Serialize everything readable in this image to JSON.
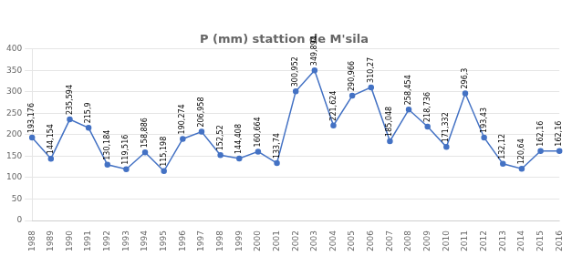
{
  "chart_data": {
    "type": "line",
    "title": "P (mm) stattion de M'sila",
    "categories": [
      "1988",
      "1989",
      "1990",
      "1991",
      "1992",
      "1993",
      "1994",
      "1995",
      "1996",
      "1997",
      "1998",
      "1999",
      "2000",
      "2001",
      "2002",
      "2003",
      "2004",
      "2005",
      "2006",
      "2007",
      "2008",
      "2009",
      "2010",
      "2011",
      "2012",
      "2013",
      "2014",
      "2015",
      "2016"
    ],
    "values": [
      193.176,
      144.154,
      235.594,
      215.9,
      130.184,
      119.516,
      158.886,
      115.198,
      190.274,
      206.958,
      152.52,
      144.408,
      160.664,
      133.74,
      300.952,
      349.894,
      221.624,
      290.966,
      310.27,
      185.048,
      258.454,
      218.736,
      171.332,
      296.3,
      193.43,
      132.12,
      120.64,
      162.16,
      162.16
    ],
    "value_labels": [
      "193,176",
      "144,154",
      "235,594",
      "215,9",
      "130,184",
      "119,516",
      "158,886",
      "115,198",
      "190,274",
      "206,958",
      "152,52",
      "144,408",
      "160,664",
      "133,74",
      "300,952",
      "349,894",
      "221,624",
      "290,966",
      "310,27",
      "185,048",
      "258,454",
      "218,736",
      "171,332",
      "296,3",
      "193,43",
      "132,12",
      "120,64",
      "162,16",
      "162,16"
    ],
    "color": "#4472C4",
    "marker": "o",
    "ylim": [
      0,
      400
    ],
    "yticks": [
      0,
      50,
      100,
      150,
      200,
      250,
      300,
      350,
      400
    ],
    "grid": "y",
    "data_labels": true
  }
}
